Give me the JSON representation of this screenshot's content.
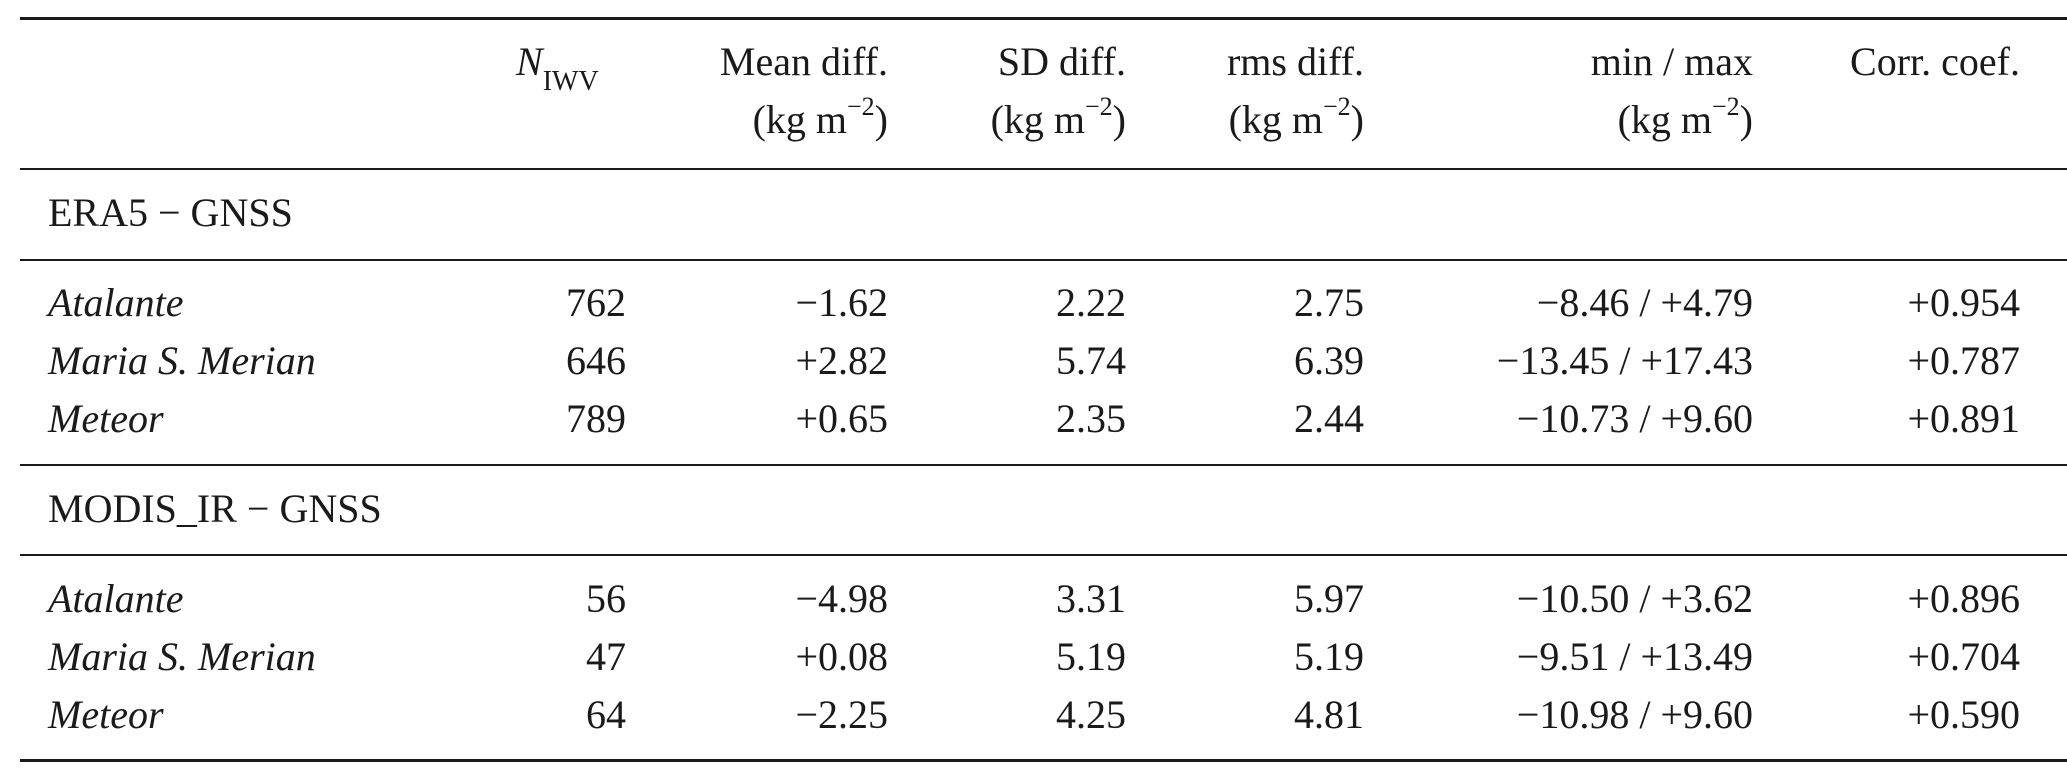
{
  "header": {
    "n_iwv_main": "N",
    "n_iwv_sub": "IWV",
    "mean_diff": "Mean diff.",
    "sd_diff": "SD diff.",
    "rms_diff": "rms diff.",
    "min_max": "min / max",
    "corr_coef": "Corr. coef.",
    "unit_base": "(kg m",
    "unit_exp": "−2",
    "unit_close": ")"
  },
  "sections": [
    {
      "title": "ERA5 − GNSS",
      "rows": [
        {
          "ship": "Atalante",
          "n": "762",
          "mean": "−1.62",
          "sd": "2.22",
          "rms": "2.75",
          "minmax": "−8.46 / +4.79",
          "corr": "+0.954"
        },
        {
          "ship": "Maria S. Merian",
          "n": "646",
          "mean": "+2.82",
          "sd": "5.74",
          "rms": "6.39",
          "minmax": "−13.45 / +17.43",
          "corr": "+0.787"
        },
        {
          "ship": "Meteor",
          "n": "789",
          "mean": "+0.65",
          "sd": "2.35",
          "rms": "2.44",
          "minmax": "−10.73 / +9.60",
          "corr": "+0.891"
        }
      ]
    },
    {
      "title": "MODIS_IR − GNSS",
      "rows": [
        {
          "ship": "Atalante",
          "n": "56",
          "mean": "−4.98",
          "sd": "3.31",
          "rms": "5.97",
          "minmax": "−10.50 / +3.62",
          "corr": "+0.896"
        },
        {
          "ship": "Maria S. Merian",
          "n": "47",
          "mean": "+0.08",
          "sd": "5.19",
          "rms": "5.19",
          "minmax": "−9.51 / +13.49",
          "corr": "+0.704"
        },
        {
          "ship": "Meteor",
          "n": "64",
          "mean": "−2.25",
          "sd": "4.25",
          "rms": "4.81",
          "minmax": "−10.98 / +9.60",
          "corr": "+0.590"
        }
      ]
    }
  ]
}
